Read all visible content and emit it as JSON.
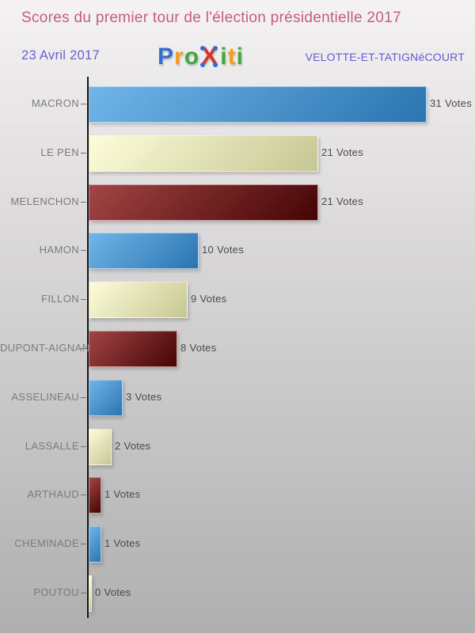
{
  "header": {
    "title": "Scores du premier tour de l'élection présidentielle 2017",
    "date": "23 Avril 2017",
    "location": "VELOTTE-ET-TATIGNéCOURT",
    "logo": {
      "name": "Proxiti",
      "letters": [
        {
          "ch": "P",
          "color": "#2f6fd2"
        },
        {
          "ch": "r",
          "color": "#f59d1e"
        },
        {
          "ch": "o",
          "color": "#43a83c"
        },
        {
          "ch": "x",
          "color": "#d5362c",
          "x_mark": true
        },
        {
          "ch": "i",
          "color": "#43a83c"
        },
        {
          "ch": "t",
          "color": "#f59d1e"
        },
        {
          "ch": "i",
          "color": "#43a83c"
        }
      ],
      "x_dot_color": "#2f6fd2"
    }
  },
  "chart_data": {
    "type": "bar",
    "orientation": "horizontal",
    "title": "Scores du premier tour de l'élection présidentielle 2017",
    "date_label": "23 Avril 2017",
    "location_label": "VELOTTE-ET-TATIGNéCOURT",
    "categories": [
      "MACRON",
      "LE PEN",
      "MELENCHON",
      "HAMON",
      "FILLON",
      "DUPONT-AIGNAN",
      "ASSELINEAU",
      "LASSALLE",
      "ARTHAUD",
      "CHEMINADE",
      "POUTOU"
    ],
    "values": [
      31,
      21,
      21,
      10,
      9,
      8,
      3,
      2,
      1,
      1,
      0
    ],
    "value_labels": [
      "31 Votes",
      "21 Votes",
      "21 Votes",
      "10 Votes",
      "9 Votes",
      "8 Votes",
      "3 Votes",
      "2 Votes",
      "1 Votes",
      "1 Votes",
      "0 Votes"
    ],
    "xlim": [
      0,
      31
    ],
    "grid": false,
    "legend": false,
    "axis_style": "single-vertical-baseline-left",
    "bar_color_cycle": [
      "blue",
      "cream",
      "darkred"
    ],
    "bar_colors": {
      "blue": {
        "from": "#6fb5e8",
        "to": "#2b74b0"
      },
      "cream": {
        "from": "#fdfdda",
        "to": "#c6c693"
      },
      "darkred": {
        "from": "#a24545",
        "to": "#450404"
      }
    }
  },
  "colors": {
    "title": "#c75d7c",
    "date": "#6363d5",
    "location": "#5c5cd6",
    "category_label": "#7b7b7b",
    "value_label": "#4a4a4a",
    "axis": "#161616",
    "bg_top": "#f4f2f3",
    "bg_bottom": "#b0afb0"
  }
}
